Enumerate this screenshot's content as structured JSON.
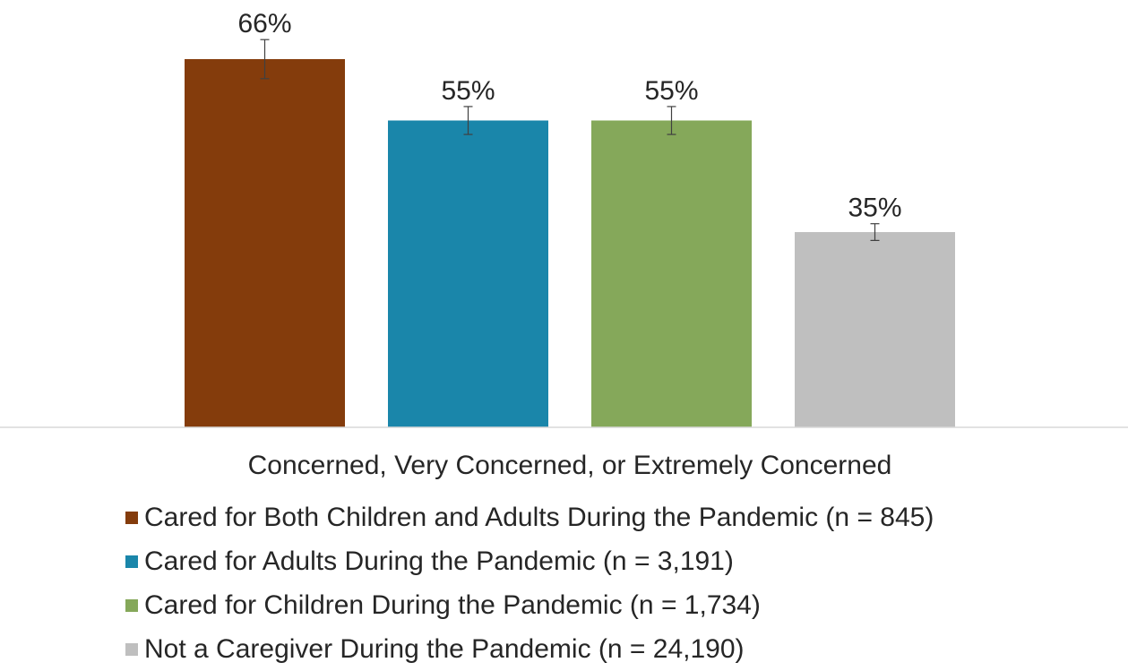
{
  "chart_data": {
    "type": "bar",
    "categories": [
      "Concerned, Very Concerned, or Extremely Concerned"
    ],
    "series": [
      {
        "name": "Cared for Both Children and Adults During the Pandemic (n = 845)",
        "values": [
          66
        ],
        "label": "66%",
        "error": [
          3.5
        ],
        "color": "#843C0C"
      },
      {
        "name": "Cared for Adults During the Pandemic (n = 3,191)",
        "values": [
          55
        ],
        "label": "55%",
        "error": [
          2.5
        ],
        "color": "#1A86AA"
      },
      {
        "name": "Cared for Children During the Pandemic (n = 1,734)",
        "values": [
          55
        ],
        "label": "55%",
        "error": [
          2.5
        ],
        "color": "#85A85A"
      },
      {
        "name": "Not a Caregiver During the Pandemic (n = 24,190)",
        "values": [
          35
        ],
        "label": "35%",
        "error": [
          1.5
        ],
        "color": "#BFBFBF"
      }
    ],
    "ylim": [
      0,
      66
    ],
    "grid": false,
    "legend_position": "bottom-left"
  }
}
